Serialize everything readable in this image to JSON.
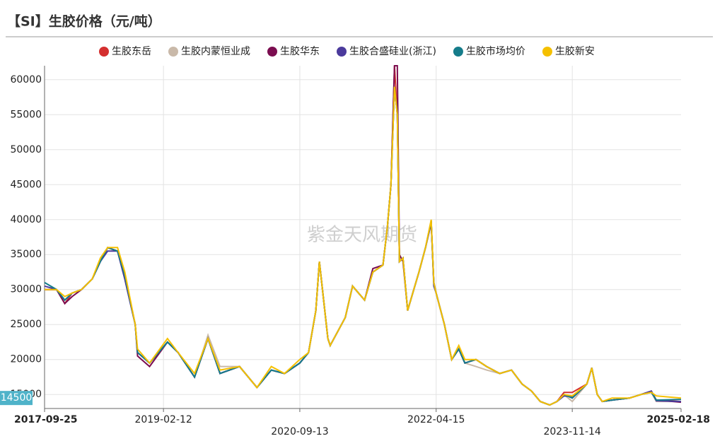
{
  "chart_data": {
    "type": "line",
    "title": "【SI】生胶价格（元/吨）",
    "watermark": "紫金天风期货",
    "x": [
      "2017-09-25",
      "2017-11-15",
      "2017-12-20",
      "2018-01-20",
      "2018-03-01",
      "2018-04-15",
      "2018-05-20",
      "2018-06-20",
      "2018-08-01",
      "2018-09-01",
      "2018-10-15",
      "2018-10-25",
      "2018-12-15",
      "2019-03-01",
      "2019-04-15",
      "2019-06-24",
      "2019-08-20",
      "2019-10-10",
      "2020-01-01",
      "2020-03-15",
      "2020-05-15",
      "2020-07-10",
      "2020-09-13",
      "2020-10-20",
      "2020-11-20",
      "2020-12-05",
      "2021-01-10",
      "2021-01-20",
      "2021-03-25",
      "2021-04-25",
      "2021-06-15",
      "2021-07-20",
      "2021-09-01",
      "2021-09-20",
      "2021-10-05",
      "2021-10-20",
      "2021-11-01",
      "2021-11-10",
      "2021-11-25",
      "2021-12-15",
      "2022-01-10",
      "2022-02-01",
      "2022-03-01",
      "2022-03-25",
      "2022-04-05",
      "2022-04-15",
      "2022-05-20",
      "2022-06-20",
      "2022-07-20",
      "2022-08-15",
      "2022-10-01",
      "2022-11-15",
      "2023-01-10",
      "2023-03-01",
      "2023-04-15",
      "2023-05-25",
      "2023-07-01",
      "2023-08-10",
      "2023-09-10",
      "2023-10-10",
      "2023-11-14",
      "2024-01-15",
      "2024-02-05",
      "2024-02-28",
      "2024-03-20",
      "2024-05-01",
      "2024-07-15",
      "2024-09-01",
      "2024-10-15",
      "2024-11-05",
      "2025-02-18"
    ],
    "series": [
      {
        "name": "生胶东岳",
        "color": "#d42f2f",
        "values": [
          30000,
          30000,
          28000,
          29500,
          30000,
          31500,
          34000,
          36000,
          35500,
          32000,
          25000,
          21000,
          19500,
          22500,
          21000,
          17500,
          23000,
          18000,
          19000,
          16000,
          18500,
          18000,
          19500,
          21000,
          27000,
          34000,
          23000,
          22000,
          26000,
          30500,
          28500,
          32500,
          33500,
          39000,
          45000,
          62000,
          55000,
          34000,
          34500,
          27000,
          30000,
          32500,
          36000,
          39800,
          31000,
          29500,
          25000,
          20000,
          21500,
          19500,
          20000,
          19000,
          18000,
          18500,
          16500,
          15500,
          14000,
          13500,
          14000,
          15300,
          15300,
          16500,
          18800,
          15000,
          14000,
          14200,
          14500,
          15000,
          15300,
          14200,
          14000
        ]
      },
      {
        "name": "生胶内蒙恒业成",
        "color": "#c9b9a9",
        "values": [
          30000,
          30000,
          28500,
          29500,
          30000,
          31500,
          34000,
          36000,
          35500,
          32000,
          25000,
          21000,
          19500,
          22500,
          21000,
          17500,
          23500,
          19000,
          19000,
          16000,
          18500,
          18000,
          19500,
          21000,
          27000,
          34000,
          23000,
          22000,
          26000,
          30500,
          28500,
          32500,
          33500,
          39000,
          45000,
          59000,
          55000,
          34000,
          34500,
          27000,
          30000,
          32500,
          36000,
          39800,
          31000,
          29500,
          25000,
          20000,
          21500,
          19500,
          19000,
          18500,
          18000,
          18500,
          16500,
          15500,
          14000,
          13500,
          14000,
          15000,
          14000,
          16500,
          18800,
          15000,
          14000,
          14200,
          14500,
          15000,
          15300,
          14000,
          14000
        ]
      },
      {
        "name": "生胶华东",
        "color": "#7b0d50",
        "values": [
          30000,
          30000,
          28000,
          29000,
          30000,
          31500,
          34000,
          36000,
          35500,
          31500,
          25000,
          20500,
          19000,
          22500,
          21000,
          17500,
          23000,
          18000,
          19000,
          16000,
          18500,
          18000,
          19500,
          21000,
          27000,
          34000,
          23000,
          22000,
          26000,
          30500,
          28500,
          33000,
          33500,
          39000,
          45000,
          62000,
          62000,
          35000,
          34000,
          27000,
          30000,
          32500,
          36000,
          39500,
          31000,
          29500,
          25000,
          20000,
          21500,
          19500,
          20000,
          19000,
          18000,
          18500,
          16500,
          15500,
          14000,
          13500,
          14000,
          15000,
          14500,
          16500,
          18800,
          15000,
          14000,
          14200,
          14500,
          15000,
          15500,
          14200,
          13900
        ]
      },
      {
        "name": "生胶合盛硅业(浙江)",
        "color": "#4b3a9c",
        "values": [
          30500,
          30000,
          28500,
          29500,
          30000,
          31500,
          34000,
          35500,
          35500,
          31500,
          25000,
          21000,
          19500,
          22500,
          21000,
          17500,
          23000,
          18000,
          19000,
          16000,
          18500,
          18000,
          19500,
          21000,
          27000,
          34000,
          23000,
          22000,
          26000,
          30500,
          28500,
          32500,
          33500,
          39000,
          45000,
          59000,
          55000,
          34000,
          34500,
          27000,
          30000,
          32500,
          36000,
          39800,
          30500,
          29500,
          25000,
          20000,
          21500,
          19500,
          20000,
          19000,
          18000,
          18500,
          16500,
          15500,
          14000,
          13500,
          14000,
          14800,
          14700,
          16500,
          18800,
          15000,
          14000,
          14200,
          14500,
          15000,
          15500,
          14100,
          14000
        ]
      },
      {
        "name": "生胶市场均价",
        "color": "#157c8a",
        "values": [
          31000,
          30000,
          28500,
          29500,
          30000,
          31500,
          34000,
          36000,
          35500,
          32000,
          25000,
          21000,
          19500,
          22500,
          21000,
          17500,
          23000,
          18000,
          19000,
          16000,
          18500,
          18000,
          19500,
          21000,
          27000,
          34000,
          23000,
          22000,
          26000,
          30500,
          28500,
          32500,
          33500,
          39000,
          45000,
          59000,
          55000,
          34000,
          34500,
          27000,
          30000,
          32500,
          36000,
          39800,
          31000,
          29500,
          25000,
          20000,
          21500,
          19500,
          20000,
          19000,
          18000,
          18500,
          16500,
          15500,
          14000,
          13500,
          14000,
          15000,
          14500,
          16500,
          18800,
          15000,
          14000,
          14200,
          14500,
          15000,
          15300,
          14200,
          14300
        ]
      },
      {
        "name": "生胶新安",
        "color": "#f5c000",
        "values": [
          30000,
          30000,
          29000,
          29500,
          30000,
          31500,
          34500,
          36000,
          36000,
          32500,
          25000,
          21500,
          19500,
          23000,
          21000,
          18000,
          23000,
          18500,
          19000,
          16000,
          19000,
          18000,
          20000,
          21000,
          27000,
          34000,
          23000,
          22000,
          26000,
          30500,
          28500,
          32500,
          33500,
          39000,
          45000,
          59000,
          55000,
          34000,
          34500,
          27000,
          30000,
          32500,
          36000,
          40000,
          31000,
          29500,
          25000,
          20000,
          22000,
          20000,
          20000,
          19000,
          18000,
          18500,
          16500,
          15500,
          14000,
          13500,
          14000,
          15000,
          14800,
          16500,
          18800,
          15000,
          14000,
          14500,
          14500,
          15000,
          15300,
          14800,
          14500
        ]
      }
    ],
    "xlim": [
      "2017-09-25",
      "2025-02-18"
    ],
    "xticks": [
      "2017-09-25",
      "2019-02-12",
      "2020-09-13",
      "2022-04-15",
      "2023-11-14",
      "2025-02-18"
    ],
    "ylim": [
      13000,
      62000
    ],
    "yticks": [
      15000,
      20000,
      25000,
      30000,
      35000,
      40000,
      45000,
      50000,
      55000,
      60000
    ],
    "grid": true,
    "legend": "top"
  }
}
